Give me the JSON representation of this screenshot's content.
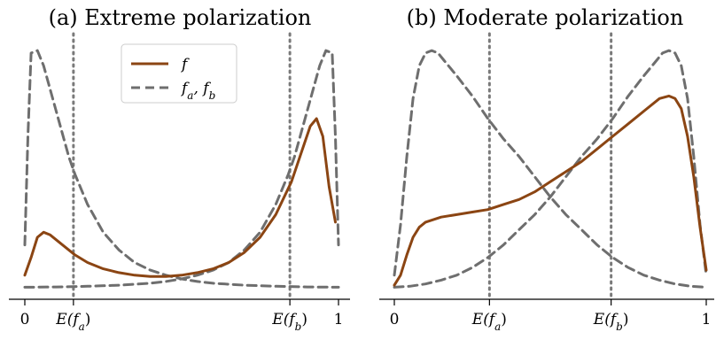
{
  "colors": {
    "f": "#8b4513",
    "fab": "#6e6e6e",
    "mean_line": "#7a7a7a",
    "axis": "#000000"
  },
  "legend": {
    "items": [
      {
        "label": "f",
        "series": "f"
      },
      {
        "label": "f_a, f_b",
        "series": "fab"
      }
    ],
    "placement": "top-center (panel a)"
  },
  "chart_data": [
    {
      "type": "line",
      "title": "(a) Extreme polarization",
      "xlabel": "",
      "ylabel": "",
      "xlim": [
        0,
        1
      ],
      "ylim": [
        0,
        1.0
      ],
      "xticks": [
        {
          "value": 0,
          "label": "0"
        },
        {
          "value": 0.155,
          "label": "E(f_a)"
        },
        {
          "value": 0.845,
          "label": "E(f_b)"
        },
        {
          "value": 1,
          "label": "1"
        }
      ],
      "vertical_lines": [
        0.155,
        0.845
      ],
      "grid": false,
      "series": [
        {
          "name": "f",
          "style": "solid",
          "x": [
            0,
            0.02,
            0.04,
            0.06,
            0.08,
            0.12,
            0.16,
            0.2,
            0.25,
            0.3,
            0.35,
            0.4,
            0.45,
            0.5,
            0.55,
            0.6,
            0.65,
            0.7,
            0.75,
            0.8,
            0.85,
            0.88,
            0.91,
            0.93,
            0.95,
            0.97,
            0.99
          ],
          "y": [
            0.05,
            0.12,
            0.2,
            0.22,
            0.21,
            0.17,
            0.13,
            0.1,
            0.075,
            0.06,
            0.05,
            0.045,
            0.045,
            0.05,
            0.06,
            0.075,
            0.1,
            0.14,
            0.2,
            0.29,
            0.42,
            0.53,
            0.64,
            0.67,
            0.6,
            0.4,
            0.26
          ]
        },
        {
          "name": "f_a",
          "style": "dashed",
          "x": [
            0,
            0.01,
            0.02,
            0.04,
            0.06,
            0.08,
            0.1,
            0.12,
            0.14,
            0.16,
            0.2,
            0.25,
            0.3,
            0.35,
            0.4,
            0.45,
            0.5,
            0.55,
            0.6,
            0.7,
            0.8,
            0.9,
            1.0
          ],
          "y": [
            0.17,
            0.6,
            0.93,
            0.94,
            0.88,
            0.79,
            0.7,
            0.61,
            0.52,
            0.45,
            0.33,
            0.22,
            0.15,
            0.1,
            0.07,
            0.05,
            0.035,
            0.025,
            0.018,
            0.01,
            0.006,
            0.003,
            0.002
          ]
        },
        {
          "name": "f_b",
          "style": "dashed",
          "x": [
            0,
            0.1,
            0.2,
            0.3,
            0.4,
            0.45,
            0.5,
            0.55,
            0.6,
            0.65,
            0.7,
            0.75,
            0.8,
            0.84,
            0.86,
            0.88,
            0.9,
            0.92,
            0.94,
            0.96,
            0.98,
            0.99,
            1.0
          ],
          "y": [
            0.002,
            0.003,
            0.006,
            0.01,
            0.018,
            0.025,
            0.035,
            0.05,
            0.07,
            0.1,
            0.15,
            0.22,
            0.33,
            0.45,
            0.52,
            0.61,
            0.7,
            0.79,
            0.88,
            0.94,
            0.93,
            0.6,
            0.17
          ]
        }
      ]
    },
    {
      "type": "line",
      "title": "(b) Moderate polarization",
      "xlabel": "",
      "ylabel": "",
      "xlim": [
        0,
        1
      ],
      "ylim": [
        0,
        1.0
      ],
      "xticks": [
        {
          "value": 0,
          "label": "0"
        },
        {
          "value": 0.305,
          "label": "E(f_a)"
        },
        {
          "value": 0.695,
          "label": "E(f_b)"
        },
        {
          "value": 1,
          "label": "1"
        }
      ],
      "vertical_lines": [
        0.305,
        0.695
      ],
      "grid": false,
      "series": [
        {
          "name": "f",
          "style": "solid",
          "x": [
            0,
            0.02,
            0.04,
            0.06,
            0.08,
            0.1,
            0.15,
            0.2,
            0.25,
            0.3,
            0.35,
            0.4,
            0.45,
            0.5,
            0.55,
            0.6,
            0.65,
            0.7,
            0.75,
            0.8,
            0.85,
            0.88,
            0.9,
            0.92,
            0.94,
            0.96,
            0.98,
            1.0
          ],
          "y": [
            0.01,
            0.05,
            0.13,
            0.2,
            0.24,
            0.26,
            0.28,
            0.29,
            0.3,
            0.31,
            0.33,
            0.35,
            0.38,
            0.42,
            0.46,
            0.5,
            0.55,
            0.6,
            0.65,
            0.7,
            0.75,
            0.76,
            0.75,
            0.71,
            0.6,
            0.44,
            0.24,
            0.07
          ]
        },
        {
          "name": "f_a",
          "style": "dashed",
          "x": [
            0,
            0.02,
            0.04,
            0.06,
            0.08,
            0.1,
            0.12,
            0.14,
            0.16,
            0.18,
            0.2,
            0.25,
            0.3,
            0.35,
            0.4,
            0.45,
            0.5,
            0.55,
            0.6,
            0.65,
            0.7,
            0.75,
            0.8,
            0.85,
            0.9,
            0.95,
            1.0
          ],
          "y": [
            0.05,
            0.25,
            0.52,
            0.75,
            0.88,
            0.93,
            0.94,
            0.93,
            0.9,
            0.87,
            0.84,
            0.76,
            0.67,
            0.59,
            0.52,
            0.44,
            0.36,
            0.29,
            0.23,
            0.17,
            0.12,
            0.08,
            0.05,
            0.03,
            0.015,
            0.006,
            0.002
          ]
        },
        {
          "name": "f_b",
          "style": "dashed",
          "x": [
            0,
            0.05,
            0.1,
            0.15,
            0.2,
            0.25,
            0.3,
            0.35,
            0.4,
            0.45,
            0.5,
            0.55,
            0.6,
            0.65,
            0.7,
            0.75,
            0.8,
            0.82,
            0.84,
            0.86,
            0.88,
            0.9,
            0.92,
            0.94,
            0.96,
            0.98,
            1.0
          ],
          "y": [
            0.002,
            0.006,
            0.015,
            0.03,
            0.05,
            0.08,
            0.12,
            0.17,
            0.23,
            0.29,
            0.36,
            0.44,
            0.52,
            0.59,
            0.67,
            0.76,
            0.84,
            0.87,
            0.9,
            0.93,
            0.94,
            0.93,
            0.88,
            0.75,
            0.52,
            0.25,
            0.05
          ]
        }
      ]
    }
  ]
}
